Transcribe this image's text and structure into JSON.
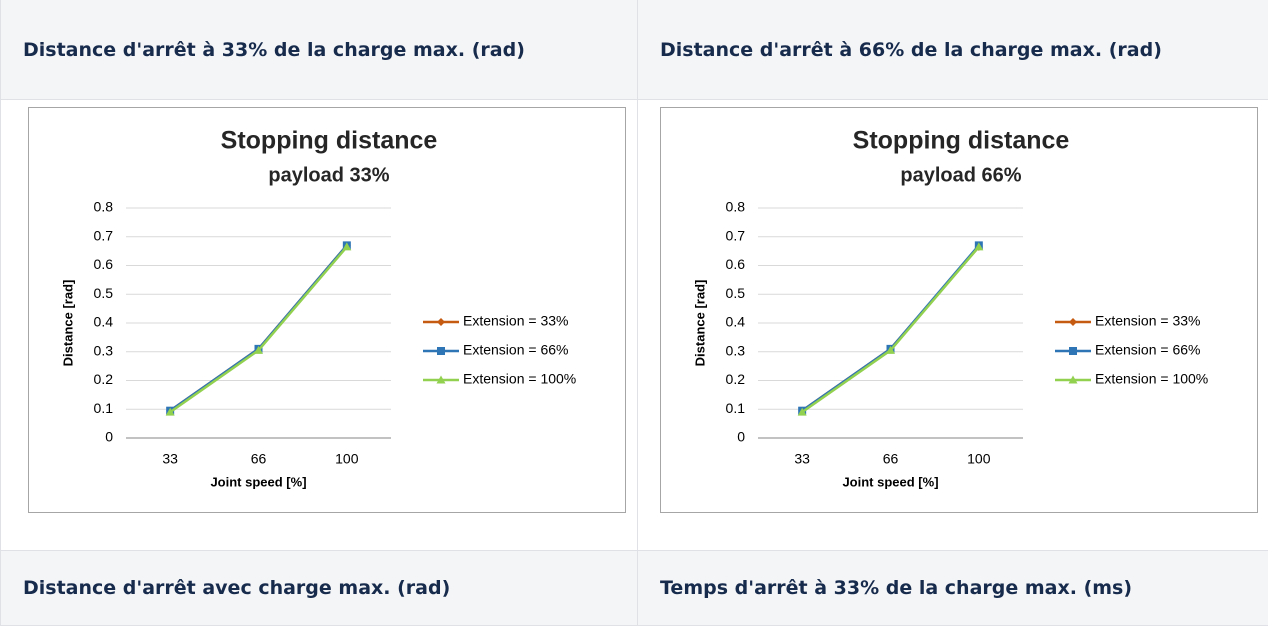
{
  "table": {
    "rows": [
      [
        "Distance d'arrêt à 33% de la charge max. (rad)",
        "Distance d'arrêt à 66% de la charge max. (rad)"
      ],
      [
        "Distance d'arrêt avec charge max. (rad)",
        "Temps d'arrêt à 33% de la charge max. (ms)"
      ]
    ]
  },
  "charts": [
    {
      "type": "line",
      "title": "Stopping distance",
      "subtitle": "payload 33%",
      "x_label": "Joint speed [%]",
      "y_label": "Distance [rad]",
      "categories": [
        "33",
        "66",
        "100"
      ],
      "ylim": [
        0,
        0.8
      ],
      "yticks": [
        0,
        0.1,
        0.2,
        0.3,
        0.4,
        0.5,
        0.6,
        0.7,
        0.8
      ],
      "grid": true,
      "series": [
        {
          "name": "Extension = 33%",
          "color": "#c55a11",
          "marker": "diamond",
          "values": [
            0.095,
            0.31,
            0.67
          ]
        },
        {
          "name": "Extension = 66%",
          "color": "#2e75b6",
          "marker": "square",
          "values": [
            0.095,
            0.31,
            0.67
          ]
        },
        {
          "name": "Extension = 100%",
          "color": "#92d050",
          "marker": "triangle",
          "values": [
            0.09,
            0.305,
            0.665
          ]
        }
      ]
    },
    {
      "type": "line",
      "title": "Stopping distance",
      "subtitle": "payload 66%",
      "x_label": "Joint speed [%]",
      "y_label": "Distance [rad]",
      "categories": [
        "33",
        "66",
        "100"
      ],
      "ylim": [
        0,
        0.8
      ],
      "yticks": [
        0,
        0.1,
        0.2,
        0.3,
        0.4,
        0.5,
        0.6,
        0.7,
        0.8
      ],
      "grid": true,
      "series": [
        {
          "name": "Extension = 33%",
          "color": "#c55a11",
          "marker": "diamond",
          "values": [
            0.095,
            0.31,
            0.665
          ]
        },
        {
          "name": "Extension = 66%",
          "color": "#2e75b6",
          "marker": "square",
          "values": [
            0.095,
            0.31,
            0.67
          ]
        },
        {
          "name": "Extension = 100%",
          "color": "#92d050",
          "marker": "triangle",
          "values": [
            0.09,
            0.305,
            0.665
          ]
        }
      ]
    }
  ]
}
